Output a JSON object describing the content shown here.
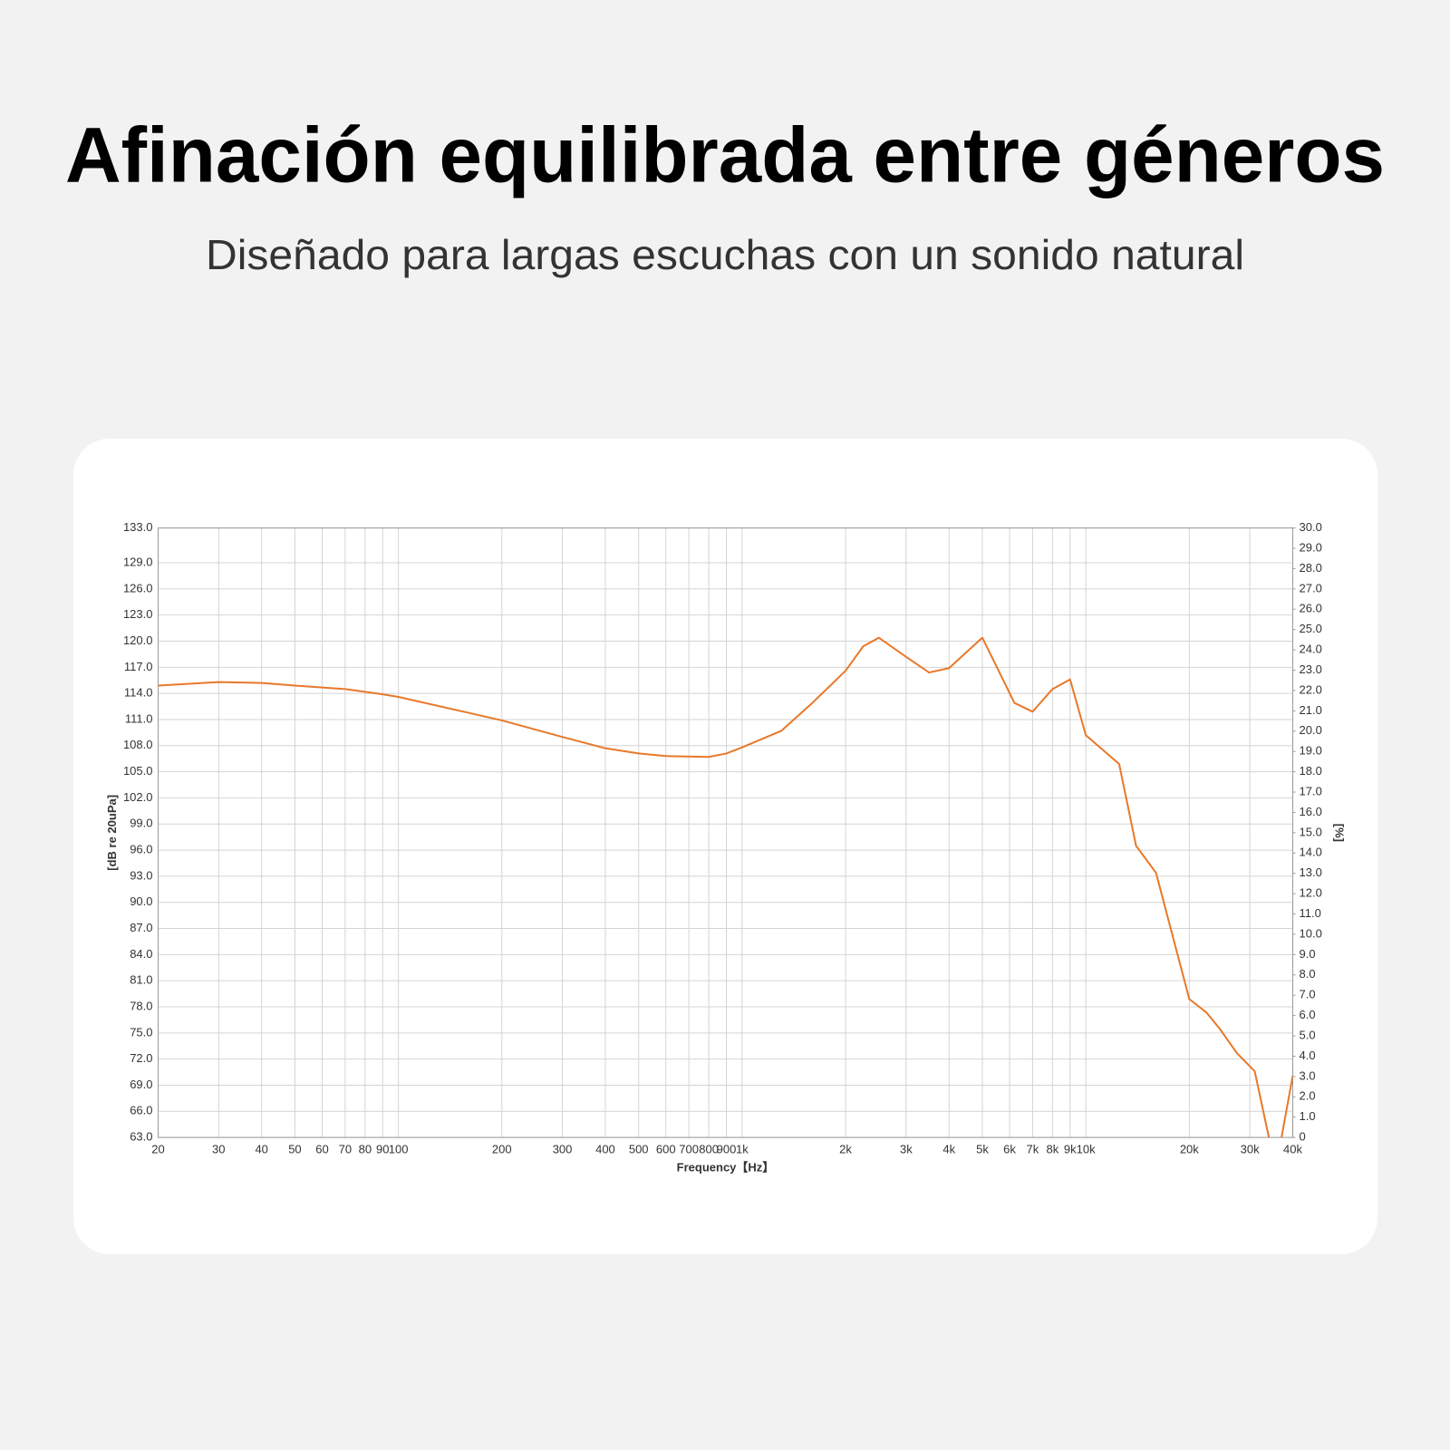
{
  "title": "Afinación equilibrada entre géneros",
  "subtitle": "Diseñado para largas escuchas con un sonido natural",
  "chart_data": {
    "type": "line",
    "x_label": "Frequency【Hz】",
    "y_label": "[dB re 20uPa]",
    "y2_label": "[%]",
    "x_log": true,
    "grid": true,
    "xlim": [
      20,
      40000
    ],
    "xticks": [
      20,
      30,
      40,
      50,
      60,
      70,
      80,
      90,
      100,
      200,
      300,
      400,
      500,
      600,
      700,
      800,
      900,
      {
        "value": 1000,
        "label": "1k"
      },
      {
        "value": 2000,
        "label": "2k"
      },
      {
        "value": 3000,
        "label": "3k"
      },
      {
        "value": 4000,
        "label": "4k"
      },
      {
        "value": 5000,
        "label": "5k"
      },
      {
        "value": 6000,
        "label": "6k"
      },
      {
        "value": 7000,
        "label": "7k"
      },
      {
        "value": 8000,
        "label": "8k"
      },
      {
        "value": 9000,
        "label": "9k"
      },
      {
        "value": 10000,
        "label": "10k"
      },
      {
        "value": 20000,
        "label": "20k"
      },
      {
        "value": 30000,
        "label": "30k"
      },
      {
        "value": 40000,
        "label": "40k"
      }
    ],
    "ylim": [
      63,
      133
    ],
    "yticks": [
      {
        "value": 63,
        "label": "63.0"
      },
      {
        "value": 66,
        "label": "66.0"
      },
      {
        "value": 69,
        "label": "69.0"
      },
      {
        "value": 72,
        "label": "72.0"
      },
      {
        "value": 75,
        "label": "75.0"
      },
      {
        "value": 78,
        "label": "78.0"
      },
      {
        "value": 81,
        "label": "81.0"
      },
      {
        "value": 84,
        "label": "84.0"
      },
      {
        "value": 87,
        "label": "87.0"
      },
      {
        "value": 90,
        "label": "90.0"
      },
      {
        "value": 93,
        "label": "93.0"
      },
      {
        "value": 96,
        "label": "96.0"
      },
      {
        "value": 99,
        "label": "99.0"
      },
      {
        "value": 102,
        "label": "102.0"
      },
      {
        "value": 105,
        "label": "105.0"
      },
      {
        "value": 108,
        "label": "108.0"
      },
      {
        "value": 111,
        "label": "111.0"
      },
      {
        "value": 114,
        "label": "114.0"
      },
      {
        "value": 117,
        "label": "117.0"
      },
      {
        "value": 120,
        "label": "120.0"
      },
      {
        "value": 123,
        "label": "123.0"
      },
      {
        "value": 126,
        "label": "126.0"
      },
      {
        "value": 129,
        "label": "129.0"
      },
      {
        "value": 133,
        "label": "133.0"
      }
    ],
    "y2lim": [
      0,
      30
    ],
    "y2ticks": [
      0,
      {
        "value": 1,
        "label": "1.0"
      },
      {
        "value": 2,
        "label": "2.0"
      },
      {
        "value": 3,
        "label": "3.0"
      },
      {
        "value": 4,
        "label": "4.0"
      },
      {
        "value": 5,
        "label": "5.0"
      },
      {
        "value": 6,
        "label": "6.0"
      },
      {
        "value": 7,
        "label": "7.0"
      },
      {
        "value": 8,
        "label": "8.0"
      },
      {
        "value": 9,
        "label": "9.0"
      },
      {
        "value": 10,
        "label": "10.0"
      },
      {
        "value": 11,
        "label": "11.0"
      },
      {
        "value": 12,
        "label": "12.0"
      },
      {
        "value": 13,
        "label": "13.0"
      },
      {
        "value": 14,
        "label": "14.0"
      },
      {
        "value": 15,
        "label": "15.0"
      },
      {
        "value": 16,
        "label": "16.0"
      },
      {
        "value": 17,
        "label": "17.0"
      },
      {
        "value": 18,
        "label": "18.0"
      },
      {
        "value": 19,
        "label": "19.0"
      },
      {
        "value": 20,
        "label": "20.0"
      },
      {
        "value": 21,
        "label": "21.0"
      },
      {
        "value": 22,
        "label": "22.0"
      },
      {
        "value": 23,
        "label": "23.0"
      },
      {
        "value": 24,
        "label": "24.0"
      },
      {
        "value": 25,
        "label": "25.0"
      },
      {
        "value": 26,
        "label": "26.0"
      },
      {
        "value": 27,
        "label": "27.0"
      },
      {
        "value": 28,
        "label": "28.0"
      },
      {
        "value": 29,
        "label": "29.0"
      },
      {
        "value": 30,
        "label": "30.0"
      }
    ],
    "x": [
      20,
      30,
      40,
      50,
      70,
      90,
      100,
      200,
      300,
      400,
      500,
      600,
      800,
      900,
      1000,
      1300,
      1600,
      2000,
      2250,
      2500,
      3000,
      3500,
      4000,
      5000,
      6200,
      7000,
      8000,
      9000,
      10000,
      12500,
      14000,
      16000,
      20000,
      22500,
      24500,
      27500,
      31000,
      34300,
      36900,
      40000
    ],
    "series": [
      {
        "color": "#e8782a",
        "values": [
          114.9,
          115.3,
          115.2,
          114.9,
          114.5,
          113.9,
          113.6,
          110.9,
          109.0,
          107.7,
          107.1,
          106.8,
          106.7,
          107.1,
          107.8,
          109.7,
          112.9,
          116.6,
          119.4,
          120.4,
          118.2,
          116.4,
          116.9,
          120.4,
          112.9,
          111.9,
          114.5,
          115.6,
          109.2,
          105.9,
          96.5,
          93.4,
          78.9,
          77.3,
          75.5,
          72.7,
          70.6,
          62.5,
          62.5,
          70.1
        ]
      }
    ]
  }
}
